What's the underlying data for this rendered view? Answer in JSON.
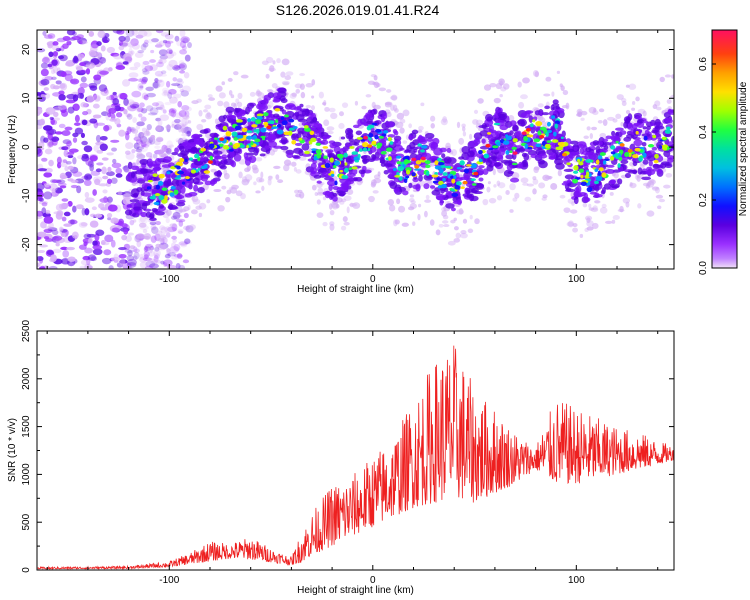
{
  "figure_title": "S126.2026.019.01.41.R24",
  "chart_data": [
    {
      "type": "heatmap",
      "title": "S126.2026.019.01.41.R24",
      "xlabel": "Height of straight line (km)",
      "ylabel": "Frequency (Hz)",
      "xlim": [
        -165,
        148
      ],
      "ylim": [
        -25,
        24
      ],
      "xticks": [
        -100,
        0,
        100
      ],
      "yticks": [
        -20,
        -10,
        0,
        10,
        20
      ],
      "xtick_labels": [
        "-100",
        "0",
        "100"
      ],
      "ytick_labels": [
        "-20",
        "-10",
        "0",
        "10",
        "20"
      ],
      "colorbar": {
        "label": "Normalized spectral amplitude",
        "range": [
          0,
          0.7
        ],
        "ticks": [
          0.0,
          0.2,
          0.4,
          0.6
        ],
        "tick_labels": [
          "0.0",
          "0.2",
          "0.4",
          "0.6"
        ],
        "colors": [
          "#f0e0f8",
          "#9a30ff",
          "#5a00e0",
          "#1010ff",
          "#00a0ff",
          "#00e0c0",
          "#20ff40",
          "#c0ff00",
          "#ffe000",
          "#ff8000",
          "#ff2020",
          "#ff1060"
        ]
      },
      "ridge_center_frequency": {
        "x": [
          -125,
          -110,
          -100,
          -90,
          -80,
          -70,
          -60,
          -50,
          -45,
          -40,
          -30,
          -25,
          -20,
          -15,
          -10,
          -5,
          0,
          5,
          10,
          15,
          20,
          25,
          30,
          35,
          40,
          45,
          50,
          55,
          60,
          65,
          70,
          75,
          80,
          85,
          90,
          95,
          100,
          105,
          110,
          115,
          120,
          125,
          130,
          135,
          140,
          145
        ],
        "y": [
          -7,
          -9,
          -8,
          -4,
          -2,
          2,
          3,
          5,
          6,
          4,
          1,
          -2,
          -5,
          -4,
          -2,
          0,
          2,
          1,
          -2,
          -5,
          -3,
          -2,
          -4,
          -6,
          -7,
          -6,
          -5,
          0,
          2,
          1,
          -1,
          2,
          3,
          2,
          4,
          -2,
          -5,
          -6,
          -5,
          -4,
          -2,
          0,
          1,
          -1,
          0,
          2
        ]
      },
      "background_noise_region": {
        "x_range": [
          -165,
          -110
        ],
        "y_range": [
          -25,
          24
        ]
      }
    },
    {
      "type": "line",
      "title": "",
      "xlabel": "Height of straight line (km)",
      "ylabel": "SNR (10 * v/v)",
      "xlim": [
        -165,
        148
      ],
      "ylim": [
        0,
        2500
      ],
      "xticks": [
        -100,
        0,
        100
      ],
      "yticks": [
        0,
        500,
        1000,
        1500,
        2000,
        2500
      ],
      "xtick_labels": [
        "-100",
        "0",
        "100"
      ],
      "ytick_labels": [
        "0",
        "500",
        "1000",
        "1500",
        "2000",
        "2500"
      ],
      "line_color": "#ee2020",
      "envelope": {
        "x": [
          -165,
          -120,
          -100,
          -90,
          -80,
          -70,
          -60,
          -50,
          -40,
          -35,
          -30,
          -20,
          -10,
          0,
          10,
          20,
          30,
          40,
          50,
          60,
          70,
          80,
          90,
          100,
          110,
          120,
          130,
          140,
          148
        ],
        "low": [
          10,
          15,
          30,
          60,
          90,
          120,
          110,
          80,
          50,
          80,
          150,
          250,
          350,
          450,
          550,
          650,
          700,
          750,
          700,
          800,
          900,
          1050,
          900,
          900,
          950,
          1000,
          1050,
          1100,
          1150
        ],
        "high": [
          30,
          40,
          90,
          180,
          300,
          280,
          350,
          230,
          140,
          400,
          600,
          900,
          1000,
          1200,
          1400,
          1800,
          2200,
          2400,
          1900,
          1700,
          1450,
          1300,
          1800,
          1700,
          1600,
          1500,
          1450,
          1350,
          1300
        ]
      }
    }
  ]
}
